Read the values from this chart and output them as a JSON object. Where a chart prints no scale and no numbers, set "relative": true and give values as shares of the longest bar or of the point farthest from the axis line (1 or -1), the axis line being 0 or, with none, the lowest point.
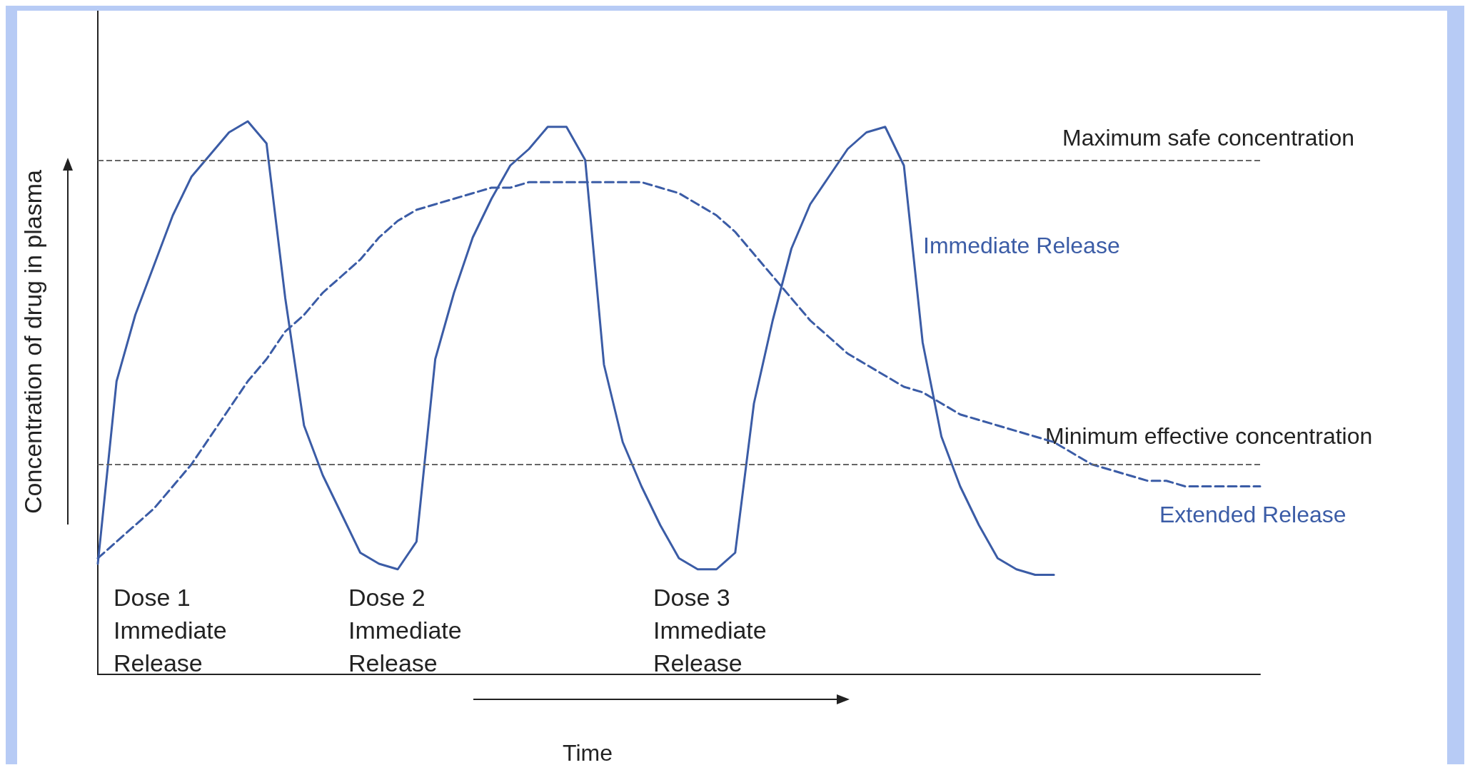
{
  "chart_data": {
    "type": "line",
    "relative": true,
    "xlabel": "Time",
    "ylabel": "Concentration of drug in plasma",
    "marker": "none",
    "grid": false,
    "legend": false,
    "categories": [
      null,
      null,
      null,
      null,
      null,
      null,
      null,
      null,
      null,
      null,
      null,
      null,
      null,
      null,
      null,
      null,
      null,
      null,
      null,
      null,
      null,
      null,
      null,
      null,
      null,
      null,
      null,
      null,
      null,
      null,
      null,
      null,
      null,
      null,
      null,
      null,
      null,
      null,
      null,
      null,
      null,
      null,
      null,
      null,
      null,
      null,
      null,
      null,
      null,
      null,
      null,
      null,
      null,
      null,
      null,
      null,
      null,
      null,
      null,
      null,
      null,
      null,
      null
    ],
    "series": [
      {
        "name": "Immediate Release",
        "color": "#3b5ca6",
        "line_style": "solid",
        "values": [
          0.2,
          0.53,
          0.65,
          0.74,
          0.83,
          0.9,
          0.94,
          0.98,
          1.0,
          0.96,
          0.68,
          0.45,
          0.36,
          0.29,
          0.22,
          0.2,
          0.19,
          0.24,
          0.57,
          0.69,
          0.79,
          0.86,
          0.92,
          0.95,
          0.99,
          0.99,
          0.93,
          0.56,
          0.42,
          0.34,
          0.27,
          0.21,
          0.19,
          0.19,
          0.22,
          0.49,
          0.64,
          0.77,
          0.85,
          0.9,
          0.95,
          0.98,
          0.99,
          0.92,
          0.6,
          0.43,
          0.34,
          0.27,
          0.21,
          0.19,
          0.18,
          0.18,
          null,
          null,
          null,
          null,
          null,
          null,
          null,
          null,
          null,
          null,
          null
        ]
      },
      {
        "name": "Extended Release",
        "color": "#3b5ca6",
        "line_style": "dashed",
        "values": [
          0.21,
          0.24,
          0.27,
          0.3,
          0.34,
          0.38,
          0.43,
          0.48,
          0.53,
          0.57,
          0.62,
          0.65,
          0.69,
          0.72,
          0.75,
          0.79,
          0.82,
          0.84,
          0.85,
          0.86,
          0.87,
          0.88,
          0.88,
          0.89,
          0.89,
          0.89,
          0.89,
          0.89,
          0.89,
          0.89,
          0.88,
          0.87,
          0.85,
          0.83,
          0.8,
          0.76,
          0.72,
          0.68,
          0.64,
          0.61,
          0.58,
          0.56,
          0.54,
          0.52,
          0.51,
          0.49,
          0.47,
          0.46,
          0.45,
          0.44,
          0.43,
          0.42,
          0.4,
          0.38,
          0.37,
          0.36,
          0.35,
          0.35,
          0.34,
          0.34,
          0.34,
          0.34,
          0.34
        ]
      }
    ],
    "ref_lines": [
      {
        "axis": "y",
        "value": 0.93,
        "label": "Maximum safe concentration",
        "color": "#666666",
        "line_style": "dashed"
      },
      {
        "axis": "y",
        "value": 0.38,
        "label": "Minimum effective concentration",
        "color": "#666666",
        "line_style": "dashed"
      }
    ],
    "annotations": [
      "Dose 1\nImmediate\nRelease",
      "Dose 2\nImmediate\nRelease",
      "Dose 3\nImmediate\nRelease"
    ]
  }
}
